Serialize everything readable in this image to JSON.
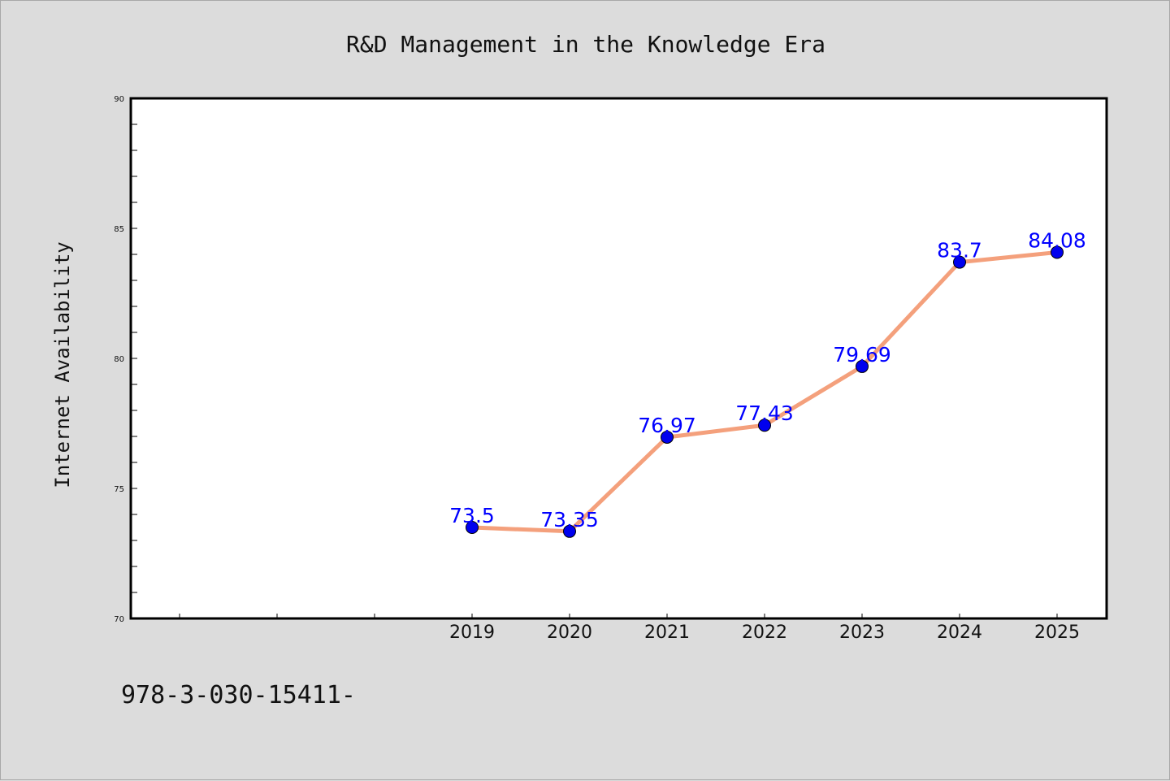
{
  "colors": {
    "background": "#dcdcdc",
    "plot_background": "#ffffff",
    "line": "#f4a07c",
    "marker": "#0000ee",
    "label": "#0000ff"
  },
  "footer_text": "978-3-030-15411-",
  "chart_data": {
    "type": "line",
    "title": "R&D Management in the Knowledge Era",
    "xlabel": "",
    "ylabel": "Internet Availability",
    "x": [
      "2019",
      "2020",
      "2021",
      "2022",
      "2023",
      "2024",
      "2025"
    ],
    "x_axis_categories_incl_unlabeled": [
      "",
      "",
      "",
      "2019",
      "2020",
      "2021",
      "2022",
      "2023",
      "2024",
      "2025"
    ],
    "series": [
      {
        "values": [
          73.5,
          73.35,
          76.97,
          77.43,
          79.69,
          83.7,
          84.08
        ],
        "labels": [
          "73.5",
          "73.35",
          "76.97",
          "77.43",
          "79.69",
          "83.7",
          "84.08"
        ]
      }
    ],
    "ylim": [
      70,
      90
    ],
    "yticks": [
      70,
      75,
      80,
      85,
      90
    ],
    "ytick_labels": [
      "70",
      "75",
      "80",
      "85",
      "90"
    ],
    "grid": false,
    "legend": "none"
  }
}
